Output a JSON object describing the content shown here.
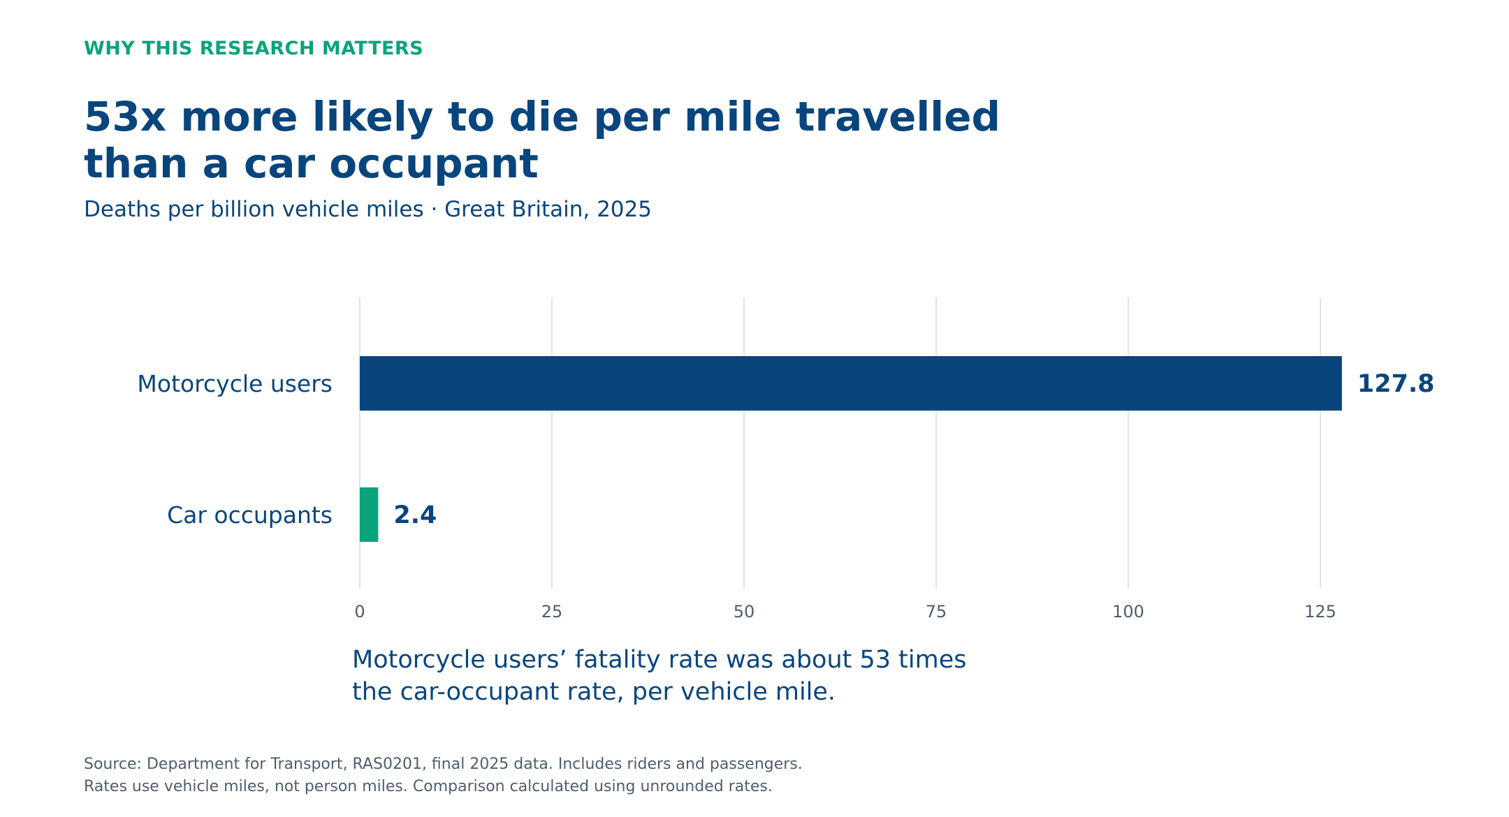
{
  "header": {
    "eyebrow": "WHY THIS RESEARCH MATTERS",
    "title_line1": "53x more likely to die per mile travelled",
    "title_line2": "than a car occupant",
    "subtitle": "Deaths per billion vehicle miles · Great Britain, 2025"
  },
  "chart_data": {
    "type": "bar",
    "orientation": "horizontal",
    "categories": [
      "Motorcycle users",
      "Car occupants"
    ],
    "values": [
      127.8,
      2.4
    ],
    "value_labels": [
      "127.8",
      "2.4"
    ],
    "bar_colors": [
      "#09457d",
      "#0ba37a"
    ],
    "xlim": [
      0,
      140
    ],
    "xticks": [
      0,
      25,
      50,
      75,
      100,
      125
    ],
    "grid": "vertical",
    "xlabel": "",
    "ylabel": ""
  },
  "annotation": {
    "line1": "Motorcycle users’ fatality rate was about 53 times",
    "line2": "the car-occupant rate, per vehicle mile."
  },
  "source": {
    "line1": "Source: Department for Transport, RAS0201, final 2025 data. Includes riders and passengers.",
    "line2": "Rates use vehicle miles, not person miles. Comparison calculated using unrounded rates."
  },
  "colors": {
    "primary": "#09457d",
    "accent": "#0ba37a",
    "grid": "#e3e3e3",
    "tick_text": "#4e5d6c"
  }
}
